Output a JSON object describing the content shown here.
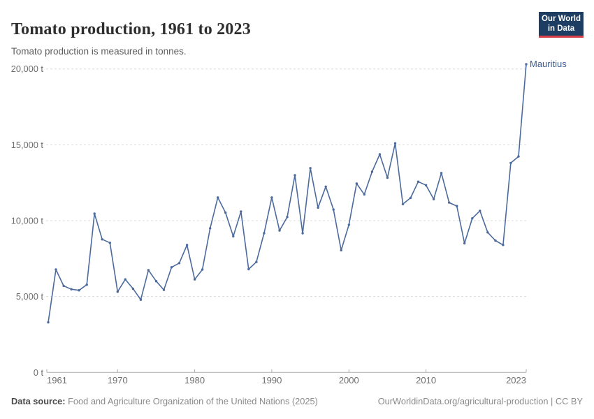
{
  "header": {
    "title": "Tomato production, 1961 to 2023",
    "subtitle": "Tomato production is measured in tonnes.",
    "logo": {
      "line1": "Our World",
      "line2": "in Data"
    }
  },
  "chart_data": {
    "type": "line",
    "title": "Tomato production, 1961 to 2023",
    "unit": "tonnes",
    "xlim": [
      1961,
      2023
    ],
    "ylim": [
      0,
      20000
    ],
    "grid": "horizontal-dashed",
    "legend_position": "end-of-line-label",
    "x_ticks": [
      1961,
      1970,
      1980,
      1990,
      2000,
      2010,
      2023
    ],
    "y_ticks": [
      0,
      5000,
      10000,
      15000,
      20000
    ],
    "y_tick_labels": [
      "0 t",
      "5,000 t",
      "10,000 t",
      "15,000 t",
      "20,000 t"
    ],
    "series": [
      {
        "name": "Mauritius",
        "color": "#4c6a9c",
        "years": [
          1961,
          1962,
          1963,
          1964,
          1965,
          1966,
          1967,
          1968,
          1969,
          1970,
          1971,
          1972,
          1973,
          1974,
          1975,
          1976,
          1977,
          1978,
          1979,
          1980,
          1981,
          1982,
          1983,
          1984,
          1985,
          1986,
          1987,
          1988,
          1989,
          1990,
          1991,
          1992,
          1993,
          1994,
          1995,
          1996,
          1997,
          1998,
          1999,
          2000,
          2001,
          2002,
          2003,
          2004,
          2005,
          2006,
          2007,
          2008,
          2009,
          2010,
          2011,
          2012,
          2013,
          2014,
          2015,
          2016,
          2017,
          2018,
          2019,
          2020,
          2021,
          2022,
          2023
        ],
        "values": [
          3300,
          6780,
          5700,
          5480,
          5410,
          5780,
          10460,
          8770,
          8540,
          5320,
          6130,
          5520,
          4790,
          6740,
          6010,
          5440,
          6930,
          7200,
          8400,
          6130,
          6780,
          9500,
          11530,
          10530,
          8970,
          10600,
          6800,
          7280,
          9170,
          11530,
          9350,
          10240,
          12990,
          9170,
          13460,
          10860,
          12240,
          10730,
          8050,
          9730,
          12450,
          11730,
          13220,
          14370,
          12830,
          15100,
          11090,
          11500,
          12570,
          12340,
          11420,
          13140,
          11190,
          10960,
          8510,
          10150,
          10650,
          9230,
          8690,
          8400,
          13800,
          14230,
          20310
        ]
      }
    ]
  },
  "footer": {
    "source_label": "Data source:",
    "source_text": "Food and Agriculture Organization of the United Nations (2025)",
    "link_text": "OurWorldinData.org/agricultural-production | CC BY"
  },
  "colors": {
    "line": "#4c6a9c",
    "entity_label": "#3d5c8f",
    "logo_bg": "#1d3d63",
    "logo_accent": "#d73c46",
    "grid": "#dcdcdc",
    "axis": "#adadad",
    "tick_text": "#6e6e6e",
    "title_text": "#2d2d2d",
    "subtitle_text": "#5d5d5d"
  }
}
